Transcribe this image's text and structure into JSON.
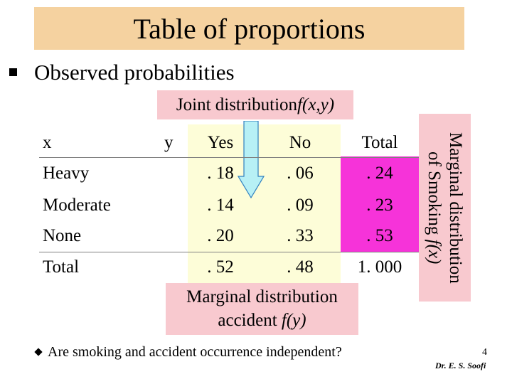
{
  "title": "Table of proportions",
  "heading": "Observed probabilities",
  "joint_label": {
    "text": "Joint distribution ",
    "func": "f(x,y)"
  },
  "table": {
    "header": {
      "x": "x",
      "y": "y",
      "yes": "Yes",
      "no": "No",
      "total": "Total"
    },
    "rows": [
      {
        "label": "Heavy",
        "yes": ". 18",
        "no": ". 06",
        "total": ". 24"
      },
      {
        "label": "Moderate",
        "yes": ". 14",
        "no": ". 09",
        "total": ". 23"
      },
      {
        "label": "None",
        "yes": ". 20",
        "no": ". 33",
        "total": ". 53"
      },
      {
        "label": "Total",
        "yes": ". 52",
        "no": ". 48",
        "total": "1. 000"
      }
    ]
  },
  "marginal_bottom": {
    "line1": "Marginal distribution",
    "line2": "accident ",
    "func": "f(y)"
  },
  "marginal_side": {
    "line1": "Marginal distribution",
    "line2": "of Smoking ",
    "func": "f(x)"
  },
  "question": "Are smoking and accident occurrence independent?",
  "page_number": "4",
  "author": "Dr. E. S. Soofi",
  "colors": {
    "title_bg": "#f5d2a0",
    "pink_box": "#f8c9cf",
    "yellow_area": "#fdfdd8",
    "magenta_area": "#f633d9",
    "arrow_fill": "#b7f0f5"
  }
}
